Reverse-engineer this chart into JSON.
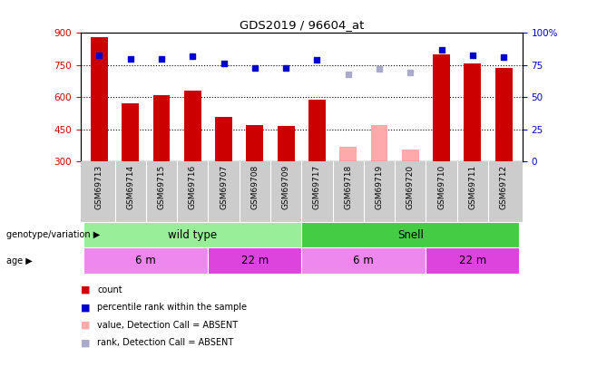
{
  "title": "GDS2019 / 96604_at",
  "samples": [
    "GSM69713",
    "GSM69714",
    "GSM69715",
    "GSM69716",
    "GSM69707",
    "GSM69708",
    "GSM69709",
    "GSM69717",
    "GSM69718",
    "GSM69719",
    "GSM69720",
    "GSM69710",
    "GSM69711",
    "GSM69712"
  ],
  "bar_values": [
    880,
    570,
    610,
    630,
    510,
    470,
    465,
    590,
    null,
    null,
    null,
    800,
    760,
    735
  ],
  "bar_absent": [
    null,
    null,
    null,
    null,
    null,
    null,
    null,
    null,
    370,
    470,
    355,
    null,
    null,
    null
  ],
  "rank_values": [
    83,
    80,
    80,
    82,
    76,
    73,
    73,
    79,
    null,
    null,
    null,
    87,
    83,
    81
  ],
  "rank_absent": [
    null,
    null,
    null,
    null,
    null,
    null,
    null,
    null,
    68,
    72,
    69,
    null,
    null,
    null
  ],
  "ylim": [
    300,
    900
  ],
  "yticks": [
    300,
    450,
    600,
    750,
    900
  ],
  "rank_ylim": [
    0,
    100
  ],
  "rank_yticks": [
    0,
    25,
    50,
    75,
    100
  ],
  "bar_color_present": "#cc0000",
  "bar_color_absent": "#ffaaaa",
  "rank_color_present": "#0000cc",
  "rank_color_absent": "#aaaacc",
  "dotted_line_values": [
    750,
    600,
    450
  ],
  "genotype_groups": [
    {
      "label": "wild type",
      "start": 0,
      "end": 7,
      "color": "#99ee99"
    },
    {
      "label": "Snell",
      "start": 7,
      "end": 14,
      "color": "#44cc44"
    }
  ],
  "age_groups": [
    {
      "label": "6 m",
      "start": 0,
      "end": 4,
      "color": "#ee88ee"
    },
    {
      "label": "22 m",
      "start": 4,
      "end": 7,
      "color": "#dd44dd"
    },
    {
      "label": "6 m",
      "start": 7,
      "end": 11,
      "color": "#ee88ee"
    },
    {
      "label": "22 m",
      "start": 11,
      "end": 14,
      "color": "#dd44dd"
    }
  ],
  "legend_items": [
    {
      "label": "count",
      "color": "#cc0000"
    },
    {
      "label": "percentile rank within the sample",
      "color": "#0000cc"
    },
    {
      "label": "value, Detection Call = ABSENT",
      "color": "#ffaaaa"
    },
    {
      "label": "rank, Detection Call = ABSENT",
      "color": "#aaaacc"
    }
  ],
  "ylabel_left_color": "#cc0000",
  "ylabel_right_color": "#0000cc",
  "background_color": "#ffffff",
  "xticklabel_bg": "#cccccc",
  "genotype_label": "genotype/variation",
  "age_label": "age",
  "bar_width": 0.55
}
